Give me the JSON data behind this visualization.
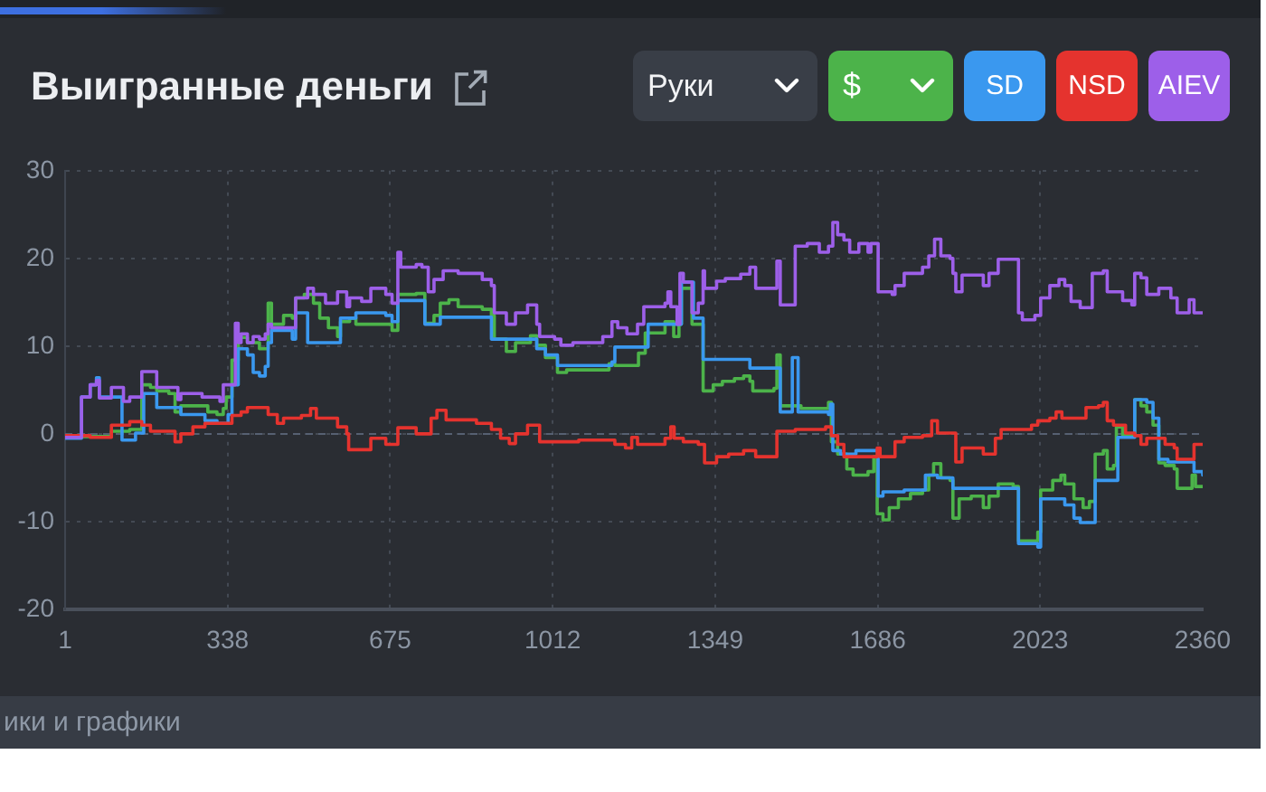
{
  "chart_data": {
    "type": "step",
    "title": "Выигранные деньги",
    "xlim": [
      1,
      2360
    ],
    "xticks": [
      1,
      338,
      675,
      1012,
      1349,
      1686,
      2023,
      2360
    ],
    "ylim": [
      -20,
      30
    ],
    "yticks": [
      -20,
      -10,
      0,
      10,
      20,
      30
    ],
    "grid": true,
    "legend": "top right",
    "annotations": [
      "Руки",
      "ики и графики"
    ],
    "ref_lines": [
      {
        "axis": "y",
        "value": 0,
        "color": "#566072",
        "line_style": "dashed"
      }
    ],
    "series": [
      {
        "name": "$",
        "color": "#4cb34a",
        "x": [
          1,
          97,
          135,
          160,
          178,
          191,
          216,
          229,
          241,
          297,
          316,
          329,
          335,
          347,
          360,
          379,
          404,
          422,
          429,
          454,
          472,
          479,
          497,
          516,
          529,
          547,
          566,
          572,
          591,
          604,
          679,
          691,
          729,
          747,
          766,
          779,
          797,
          816,
          866,
          885,
          891,
          916,
          935,
          966,
          979,
          997,
          1022,
          1041,
          1129,
          1141,
          1190,
          1204,
          1245,
          1263,
          1274,
          1279,
          1301,
          1324,
          1345,
          1364,
          1389,
          1408,
          1421,
          1427,
          1471,
          1477,
          1484,
          1527,
          1584,
          1590,
          1603,
          1622,
          1635,
          1666,
          1678,
          1685,
          1697,
          1710,
          1729,
          1754,
          1779,
          1792,
          1802,
          1817,
          1836,
          1842,
          1855,
          1880,
          1905,
          1917,
          1936,
          1967,
          1978,
          2018,
          2024,
          2049,
          2066,
          2074,
          2093,
          2112,
          2125,
          2137,
          2154,
          2162,
          2175,
          2181,
          2194,
          2219,
          2232,
          2244,
          2257,
          2269,
          2282,
          2301,
          2307,
          2338,
          2345,
          2360
        ],
        "values": [
          -0.3,
          0.3,
          0.5,
          5.6,
          5.3,
          4.9,
          4.6,
          2.5,
          3.2,
          2.5,
          2.2,
          2.9,
          4.2,
          8.4,
          11,
          10.4,
          9.7,
          14.9,
          12.5,
          13.5,
          13.2,
          15.5,
          15.9,
          14.9,
          13.2,
          12.1,
          11.1,
          12.8,
          13.2,
          12.5,
          11.8,
          15.9,
          16,
          12.6,
          13.5,
          14.9,
          15.3,
          14.5,
          14.2,
          13.5,
          10.8,
          9.4,
          10.4,
          11.2,
          10.1,
          8.7,
          7,
          7.3,
          8,
          7.8,
          9.2,
          11.5,
          12.8,
          11.1,
          12.5,
          16.6,
          12.5,
          4.9,
          5.6,
          6,
          6.3,
          6.6,
          6,
          4.9,
          5.2,
          9,
          3.2,
          2.9,
          3.6,
          -0.9,
          -2.3,
          -4,
          -4.7,
          -4.3,
          -2.6,
          -9.1,
          -9.8,
          -8.4,
          -7.4,
          -6.8,
          -6.4,
          -4.7,
          -3.4,
          -5,
          -5.3,
          -9.6,
          -7.4,
          -7.1,
          -8.4,
          -7.1,
          -5.7,
          -6,
          -12.2,
          -11.2,
          -6.4,
          -5.3,
          -4.7,
          -5.7,
          -7.4,
          -8.4,
          -7.7,
          -2.3,
          -1.9,
          -4,
          -3.6,
          0.8,
          -0.2,
          3.9,
          3.2,
          2.5,
          1,
          -3.3,
          -3.6,
          -4,
          -6.2,
          -4.7,
          -6,
          -6
        ]
      },
      {
        "name": "SD",
        "color": "#3a98ef",
        "x": [
          1,
          35,
          53,
          66,
          72,
          119,
          147,
          164,
          191,
          241,
          291,
          316,
          339,
          347,
          360,
          379,
          391,
          404,
          416,
          422,
          429,
          472,
          479,
          504,
          572,
          604,
          666,
          679,
          691,
          747,
          779,
          885,
          979,
          997,
          1022,
          1135,
          1141,
          1210,
          1279,
          1304,
          1324,
          1421,
          1484,
          1509,
          1521,
          1584,
          1588,
          1593,
          1609,
          1641,
          1687,
          1697,
          1741,
          1785,
          1810,
          1842,
          1978,
          2018,
          2024,
          2074,
          2093,
          2106,
          2137,
          2184,
          2219,
          2244,
          2257,
          2269,
          2288,
          2342,
          2360
        ],
        "values": [
          -0.5,
          4.2,
          5.6,
          6.4,
          4.2,
          -0.7,
          0.1,
          4.6,
          3,
          2.2,
          1.5,
          1.2,
          2.2,
          5.6,
          9.7,
          9,
          7,
          6.6,
          7.7,
          10.4,
          11.8,
          10.8,
          13.8,
          10.4,
          13.2,
          13.8,
          13.5,
          12.8,
          15.2,
          12.5,
          13.3,
          10.8,
          9.7,
          9,
          7.8,
          8.2,
          9.9,
          12.5,
          17.3,
          13.2,
          8.5,
          7.5,
          2.5,
          8.7,
          2.5,
          2.2,
          3.4,
          -1.9,
          -2.3,
          -1.9,
          -7.1,
          -6.6,
          -6.4,
          -4.7,
          -5,
          -6.2,
          -12.5,
          -12.9,
          -7.4,
          -8.1,
          -9.6,
          -10.1,
          -5.3,
          -0.4,
          3.9,
          3.6,
          1.8,
          -2.9,
          -3.2,
          -4.3,
          -4.7
        ]
      },
      {
        "name": "NSD",
        "color": "#e5332e",
        "x": [
          1,
          53,
          97,
          135,
          160,
          178,
          229,
          241,
          266,
          291,
          347,
          366,
          379,
          422,
          441,
          454,
          491,
          510,
          522,
          566,
          585,
          589,
          635,
          666,
          691,
          729,
          760,
          772,
          791,
          854,
          885,
          904,
          922,
          935,
          960,
          985,
          1066,
          1141,
          1163,
          1176,
          1188,
          1245,
          1257,
          1264,
          1283,
          1314,
          1327,
          1352,
          1377,
          1408,
          1433,
          1477,
          1515,
          1578,
          1590,
          1603,
          1616,
          1685,
          1691,
          1722,
          1741,
          1779,
          1798,
          1810,
          1848,
          1861,
          1905,
          1930,
          1942,
          2005,
          2018,
          2043,
          2056,
          2068,
          2118,
          2144,
          2154,
          2162,
          2175,
          2200,
          2219,
          2232,
          2244,
          2282,
          2301,
          2307,
          2342,
          2360
        ],
        "values": [
          -0.2,
          -0.4,
          1,
          1.4,
          1,
          0.3,
          -0.9,
          0,
          0.8,
          1.2,
          2.1,
          2.5,
          3,
          2.2,
          1.2,
          1.8,
          2.1,
          2.9,
          1.8,
          0.8,
          0,
          -1.8,
          -0.5,
          -1.2,
          0.7,
          0,
          1.8,
          2.7,
          1.6,
          1.2,
          0.5,
          -0.5,
          -1.1,
          0,
          1,
          -0.9,
          -0.7,
          -1.2,
          -1.6,
          -0.4,
          -1.2,
          -0.5,
          0.8,
          -0.5,
          -0.9,
          -1.2,
          -3.3,
          -2.6,
          -2.3,
          -1.9,
          -2.6,
          0.3,
          0.5,
          0.8,
          -0.2,
          -1.2,
          -2.6,
          -1.6,
          -2.6,
          -0.9,
          -0.4,
          -0.2,
          1.5,
          0.1,
          -3.2,
          -1.6,
          -2.3,
          -0.5,
          0.5,
          1,
          1.5,
          1.8,
          2.5,
          1.8,
          3,
          3.2,
          3.6,
          1.5,
          1,
          0.1,
          -0.2,
          -1.2,
          -0.5,
          -1.2,
          -1.6,
          -2.9,
          -1.2,
          -1.2
        ]
      },
      {
        "name": "AIEV",
        "color": "#9d5fe9",
        "x": [
          1,
          35,
          53,
          66,
          72,
          97,
          122,
          135,
          160,
          191,
          235,
          241,
          285,
          322,
          329,
          354,
          360,
          366,
          379,
          391,
          404,
          416,
          422,
          429,
          479,
          504,
          516,
          541,
          566,
          585,
          591,
          616,
          635,
          666,
          679,
          691,
          697,
          729,
          741,
          754,
          766,
          785,
          816,
          866,
          885,
          891,
          916,
          935,
          960,
          979,
          985,
          1016,
          1029,
          1054,
          1116,
          1135,
          1147,
          1166,
          1188,
          1201,
          1245,
          1251,
          1257,
          1270,
          1276,
          1283,
          1301,
          1314,
          1324,
          1327,
          1352,
          1370,
          1402,
          1421,
          1433,
          1477,
          1484,
          1515,
          1540,
          1565,
          1584,
          1593,
          1603,
          1616,
          1628,
          1647,
          1666,
          1672,
          1687,
          1716,
          1722,
          1741,
          1779,
          1792,
          1804,
          1817,
          1836,
          1842,
          1848,
          1861,
          1905,
          1917,
          1936,
          1978,
          1986,
          2012,
          2024,
          2043,
          2062,
          2074,
          2087,
          2106,
          2131,
          2154,
          2162,
          2194,
          2213,
          2219,
          2232,
          2244,
          2269,
          2294,
          2307,
          2332,
          2342,
          2360
        ],
        "values": [
          -0.4,
          4.2,
          5.6,
          6.1,
          4.1,
          5.3,
          3.7,
          4.2,
          7.1,
          5.3,
          3.9,
          4.6,
          4.2,
          3.7,
          5.6,
          12.6,
          10.4,
          11.4,
          10.4,
          11.1,
          10.8,
          11.4,
          12.5,
          12.1,
          15.5,
          16.6,
          15.9,
          14.9,
          16.2,
          14.5,
          15.5,
          15.1,
          16.6,
          15.9,
          14.9,
          20.7,
          19,
          19.3,
          19,
          16.2,
          17.6,
          18.6,
          18.3,
          17.6,
          16.9,
          13.8,
          12.5,
          13.8,
          14.7,
          12.5,
          11.1,
          10.8,
          10.1,
          10.4,
          11.1,
          12.8,
          12.1,
          11.4,
          12.5,
          14.5,
          14.9,
          16.2,
          14.5,
          12.5,
          18.3,
          17.3,
          13.8,
          14.9,
          18.6,
          16.6,
          17.4,
          17.7,
          18.2,
          19,
          16.6,
          19.7,
          14.7,
          21.4,
          21.7,
          20.7,
          21.4,
          24.1,
          22.7,
          22.1,
          20.7,
          21.7,
          20.7,
          21.7,
          16.2,
          15.9,
          16.9,
          18.3,
          19,
          20.3,
          22.2,
          20.3,
          20,
          18.3,
          16.2,
          18.1,
          16.9,
          18.3,
          19.9,
          13.8,
          13,
          13.5,
          15.5,
          16.9,
          17.6,
          16.9,
          15.1,
          14.4,
          18.3,
          18.6,
          16.2,
          15.2,
          14.7,
          18.3,
          17.8,
          15.9,
          16.6,
          15.5,
          13.8,
          15.3,
          13.8,
          13.8
        ]
      }
    ]
  }
}
